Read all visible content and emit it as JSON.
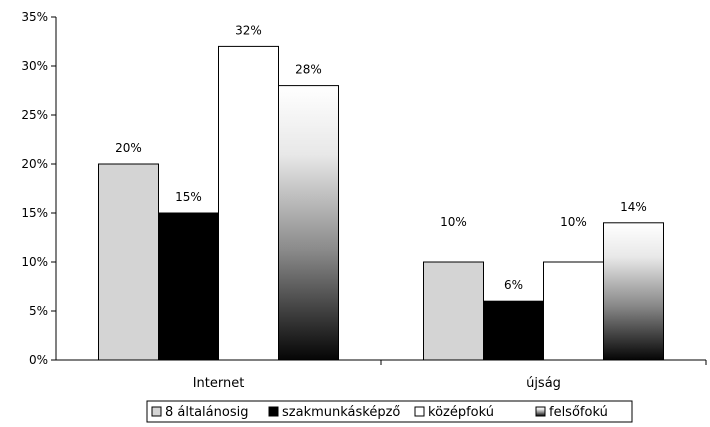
{
  "chart_data": {
    "type": "bar",
    "categories": [
      "Internet",
      "újság"
    ],
    "series": [
      {
        "name": "8 általánosig",
        "values": [
          20,
          10
        ],
        "fill": "#d4d4d4"
      },
      {
        "name": "szakmunkásképző",
        "values": [
          15,
          6
        ],
        "fill": "#000000"
      },
      {
        "name": "középfokú",
        "values": [
          32,
          10
        ],
        "fill": "#ffffff"
      },
      {
        "name": "felsőfokú",
        "values": [
          28,
          14
        ],
        "fill": "gradient"
      }
    ],
    "data_labels": [
      [
        "20%",
        "10%"
      ],
      [
        "15%",
        "6%"
      ],
      [
        "32%",
        "10%"
      ],
      [
        "28%",
        "14%"
      ]
    ],
    "ylim": [
      0,
      35
    ],
    "yticks": [
      0,
      5,
      10,
      15,
      20,
      25,
      30,
      35
    ],
    "ytick_labels": [
      "0%",
      "5%",
      "10%",
      "15%",
      "20%",
      "25%",
      "30%",
      "35%"
    ],
    "grid": false,
    "legend_position": "bottom",
    "title": "",
    "xlabel": "",
    "ylabel": ""
  }
}
